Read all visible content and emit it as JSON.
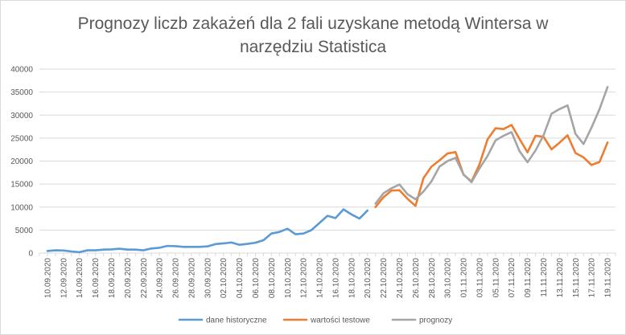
{
  "chart_data": {
    "type": "line",
    "title": "Prognozy liczb zakażeń dla 2 fali uzyskane metodą Wintersa w narzędziu Statistica",
    "title_lines": [
      "Prognozy liczb zakażeń dla 2 fali uzyskane metodą Wintersa w",
      "narzędziu Statistica"
    ],
    "xlabel": "",
    "ylabel": "",
    "ylim": [
      0,
      40000
    ],
    "yticks": [
      "0",
      "5000",
      "10000",
      "15000",
      "20000",
      "25000",
      "30000",
      "35000",
      "40000"
    ],
    "ytick_values": [
      0,
      5000,
      10000,
      15000,
      20000,
      25000,
      30000,
      35000,
      40000
    ],
    "grid": true,
    "legend_position": "bottom",
    "x_start": "10.09.2020",
    "x_labels": [
      "10.09.2020",
      "12.09.2020",
      "14.09.2020",
      "16.09.2020",
      "18.09.2020",
      "20.09.2020",
      "22.09.2020",
      "24.09.2020",
      "26.09.2020",
      "28.09.2020",
      "30.09.2020",
      "02.10.2020",
      "04.10.2020",
      "06.10.2020",
      "08.10.2020",
      "10.10.2020",
      "12.10.2020",
      "14.10.2020",
      "16.10.2020",
      "18.10.2020",
      "20.10.2020",
      "22.10.2020",
      "24.10.2020",
      "26.10.2020",
      "28.10.2020",
      "30.10.2020",
      "01.11.2020",
      "03.11.2020",
      "05.11.2020",
      "07.11.2020",
      "09.11.2020",
      "11.11.2020",
      "13.11.2020",
      "15.11.2020",
      "17.11.2020",
      "19.11.2020"
    ],
    "series": [
      {
        "name": "dane historyczne",
        "color": "#5b9bd5",
        "start_date": "10.09.2020",
        "values": [
          450,
          600,
          550,
          350,
          200,
          600,
          600,
          750,
          800,
          950,
          750,
          750,
          600,
          1000,
          1150,
          1550,
          1500,
          1350,
          1350,
          1350,
          1450,
          1950,
          2100,
          2300,
          1800,
          2000,
          2250,
          2800,
          4250,
          4600,
          5300,
          4100,
          4250,
          5000,
          6550,
          8100,
          7600,
          9500,
          8400,
          7500,
          9250
        ]
      },
      {
        "name": "wartości testowe",
        "color": "#ed7d31",
        "start_date": "21.10.2020",
        "values": [
          10000,
          12150,
          13600,
          13650,
          11800,
          10250,
          16300,
          18800,
          20150,
          21650,
          21950,
          17050,
          15550,
          19300,
          24700,
          27150,
          26950,
          27850,
          24800,
          21900,
          25500,
          25300,
          22550,
          24000,
          25600,
          21750,
          20800,
          19150,
          19800,
          24050
        ]
      },
      {
        "name": "prognozy",
        "color": "#a5a5a5",
        "start_date": "21.10.2020",
        "values": [
          10750,
          13000,
          14100,
          14900,
          12800,
          11700,
          13400,
          15600,
          18800,
          20000,
          20700,
          17100,
          15400,
          18400,
          21100,
          24500,
          25500,
          26300,
          22150,
          19750,
          22300,
          25600,
          30300,
          31300,
          32100,
          25900,
          23700,
          27300,
          31300,
          36100
        ]
      }
    ]
  }
}
